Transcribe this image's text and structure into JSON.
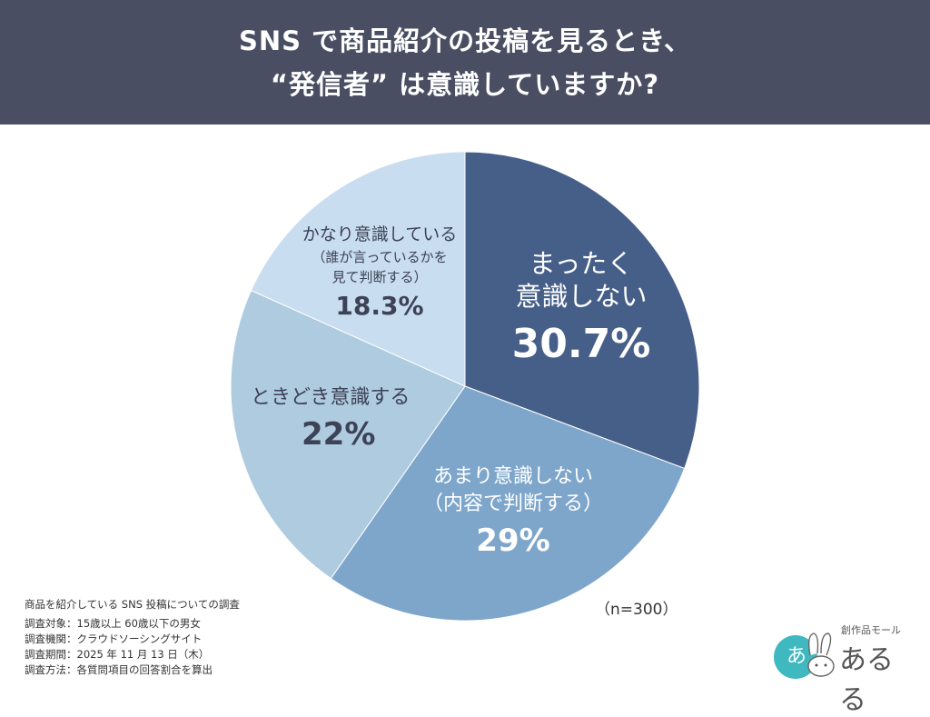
{
  "header": {
    "title_line1": "SNS で商品紹介の投稿を見るとき、",
    "title_line2": "“発信者” は意識していますか?"
  },
  "chart_data": {
    "type": "pie",
    "title": "SNS で商品紹介の投稿を見るとき、“発信者” は意識していますか?",
    "start_angle": "12 o'clock, clockwise",
    "categories": [
      "まったく意識しない",
      "あまり意識しない（内容で判断する）",
      "ときどき意識する",
      "かなり意識している（誰が言っているかを見て判断する）"
    ],
    "values": [
      30.7,
      29,
      22,
      18.3
    ],
    "unit": "%",
    "colors": [
      "#465f89",
      "#7ea6cb",
      "#afcbe0",
      "#c8ddef"
    ],
    "n": 300,
    "legend": "none (labels inside slices)"
  },
  "slices": [
    {
      "line1": "まったく",
      "line2": "意識しない",
      "pct": "30.7%"
    },
    {
      "line1": "あまり意識しない",
      "line2": "（内容で判断する）",
      "pct": "29%"
    },
    {
      "line1": "ときどき意識する",
      "pct": "22%"
    },
    {
      "line1": "かなり意識している",
      "line2": "（誰が言っているかを",
      "line3": "見て判断する）",
      "pct": "18.3%"
    }
  ],
  "sample": "（n=300）",
  "notes": {
    "title": "商品を紹介している SNS 投稿についての調査",
    "items": [
      "調査対象：15歳以上 60歳以下の男女",
      "調査機関：クラウドソーシングサイト",
      "調査期間：2025 年 11 月 13 日（木）",
      "調査方法：各質問項目の回答割合を算出"
    ]
  },
  "logo": {
    "small_text": "創作品モール",
    "big_text": "あるる",
    "badge_char": "あ"
  }
}
